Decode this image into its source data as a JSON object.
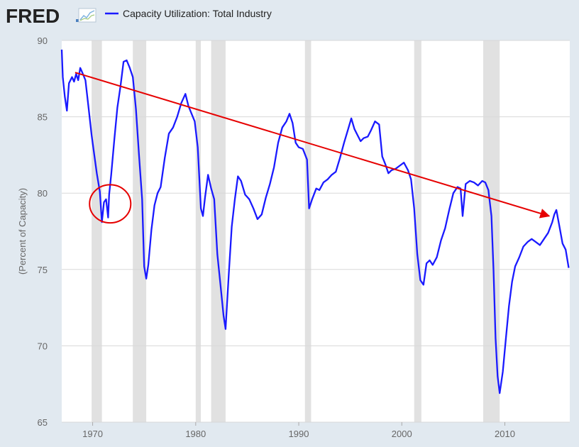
{
  "header": {
    "logo_text": "FRED",
    "legend_label": "Capacity Utilization: Total Industry"
  },
  "colors": {
    "background": "#e1e9f0",
    "plot_background": "#ffffff",
    "series": "#1a1aff",
    "annotation": "#e60000",
    "recession": "#e1e1e1",
    "grid": "#d8d8d8"
  },
  "chart_data": {
    "type": "line",
    "title": "",
    "xlabel": "",
    "ylabel": "(Percent of Capacity)",
    "xlim": [
      1967.0,
      2016.3
    ],
    "ylim": [
      65,
      90
    ],
    "grid": "horizontal",
    "x_ticks": [
      "1970",
      "1980",
      "1990",
      "2000",
      "2010"
    ],
    "y_ticks": [
      "65",
      "70",
      "75",
      "80",
      "85",
      "90"
    ],
    "recessions": [
      [
        1969.9,
        1970.9
      ],
      [
        1973.9,
        1975.2
      ],
      [
        1980.0,
        1980.5
      ],
      [
        1981.5,
        1982.9
      ],
      [
        1990.6,
        1991.2
      ],
      [
        2001.2,
        2001.9
      ],
      [
        2007.9,
        2009.5
      ]
    ],
    "series": [
      {
        "name": "Capacity Utilization: Total Industry",
        "x": [
          1967.0,
          1967.1,
          1967.3,
          1967.5,
          1967.7,
          1968.0,
          1968.2,
          1968.4,
          1968.6,
          1968.8,
          1969.0,
          1969.3,
          1969.6,
          1969.9,
          1970.1,
          1970.4,
          1970.7,
          1970.9,
          1971.1,
          1971.3,
          1971.5,
          1971.6,
          1971.8,
          1972.1,
          1972.4,
          1972.7,
          1973.0,
          1973.3,
          1973.6,
          1973.9,
          1974.2,
          1974.5,
          1974.8,
          1975.0,
          1975.2,
          1975.4,
          1975.7,
          1976.0,
          1976.3,
          1976.6,
          1977.0,
          1977.4,
          1977.8,
          1978.2,
          1978.6,
          1979.0,
          1979.3,
          1979.6,
          1979.9,
          1980.2,
          1980.5,
          1980.7,
          1980.9,
          1981.2,
          1981.5,
          1981.8,
          1982.1,
          1982.4,
          1982.7,
          1982.9,
          1983.2,
          1983.5,
          1983.8,
          1984.1,
          1984.4,
          1984.8,
          1985.2,
          1985.6,
          1986.0,
          1986.4,
          1986.8,
          1987.2,
          1987.6,
          1988.0,
          1988.4,
          1988.8,
          1989.1,
          1989.4,
          1989.7,
          1990.0,
          1990.4,
          1990.8,
          1991.0,
          1991.3,
          1991.7,
          1992.0,
          1992.4,
          1992.8,
          1993.2,
          1993.6,
          1994.0,
          1994.4,
          1994.8,
          1995.1,
          1995.4,
          1995.7,
          1996.0,
          1996.3,
          1996.7,
          1997.0,
          1997.4,
          1997.8,
          1998.1,
          1998.4,
          1998.7,
          1999.0,
          1999.4,
          1999.8,
          2000.2,
          2000.6,
          2000.9,
          2001.2,
          2001.5,
          2001.8,
          2002.1,
          2002.4,
          2002.7,
          2003.0,
          2003.4,
          2003.8,
          2004.2,
          2004.6,
          2005.0,
          2005.4,
          2005.7,
          2005.9,
          2006.2,
          2006.6,
          2007.0,
          2007.4,
          2007.8,
          2008.1,
          2008.4,
          2008.7,
          2008.9,
          2009.1,
          2009.3,
          2009.5,
          2009.8,
          2010.1,
          2010.4,
          2010.7,
          2011.0,
          2011.4,
          2011.8,
          2012.2,
          2012.6,
          2013.0,
          2013.4,
          2013.8,
          2014.2,
          2014.6,
          2014.8,
          2015.0,
          2015.3,
          2015.6,
          2015.9,
          2016.2
        ],
        "values": [
          89.4,
          87.6,
          86.3,
          85.4,
          87.2,
          87.6,
          87.3,
          87.8,
          87.4,
          88.2,
          87.9,
          87.4,
          85.6,
          83.8,
          82.8,
          81.3,
          80.1,
          78.1,
          79.4,
          79.6,
          78.4,
          79.9,
          81.2,
          83.5,
          85.6,
          87.0,
          88.6,
          88.7,
          88.2,
          87.6,
          85.5,
          82.5,
          79.6,
          75.2,
          74.4,
          75.3,
          77.6,
          79.2,
          80.0,
          80.4,
          82.3,
          83.9,
          84.3,
          85.0,
          85.9,
          86.5,
          85.7,
          85.2,
          84.7,
          83.0,
          79.0,
          78.5,
          79.7,
          81.2,
          80.3,
          79.6,
          76.0,
          74.0,
          72.0,
          71.1,
          74.6,
          77.8,
          79.6,
          81.1,
          80.8,
          79.9,
          79.6,
          79.0,
          78.3,
          78.6,
          79.7,
          80.6,
          81.7,
          83.3,
          84.3,
          84.7,
          85.2,
          84.6,
          83.3,
          83.0,
          82.9,
          82.2,
          79.0,
          79.6,
          80.3,
          80.2,
          80.7,
          80.9,
          81.2,
          81.4,
          82.3,
          83.3,
          84.2,
          84.9,
          84.2,
          83.8,
          83.4,
          83.6,
          83.7,
          84.1,
          84.7,
          84.5,
          82.4,
          81.9,
          81.3,
          81.5,
          81.6,
          81.8,
          82.0,
          81.5,
          80.9,
          79.0,
          76.0,
          74.3,
          74.0,
          75.4,
          75.6,
          75.3,
          75.8,
          76.9,
          77.7,
          78.9,
          80.0,
          80.4,
          80.3,
          78.5,
          80.6,
          80.8,
          80.7,
          80.5,
          80.8,
          80.7,
          80.2,
          78.5,
          75.0,
          70.5,
          68.0,
          66.9,
          68.3,
          70.5,
          72.6,
          74.2,
          75.2,
          75.8,
          76.5,
          76.8,
          77.0,
          76.8,
          76.6,
          77.0,
          77.4,
          78.1,
          78.6,
          78.9,
          77.8,
          76.7,
          76.3,
          75.1
        ]
      }
    ],
    "annotations": [
      {
        "type": "arrow",
        "from": [
          1968.3,
          87.9
        ],
        "to": [
          2014.3,
          78.5
        ]
      },
      {
        "type": "ellipse",
        "center": [
          1971.7,
          79.3
        ],
        "rx": 2.0,
        "ry": 1.25
      }
    ]
  }
}
